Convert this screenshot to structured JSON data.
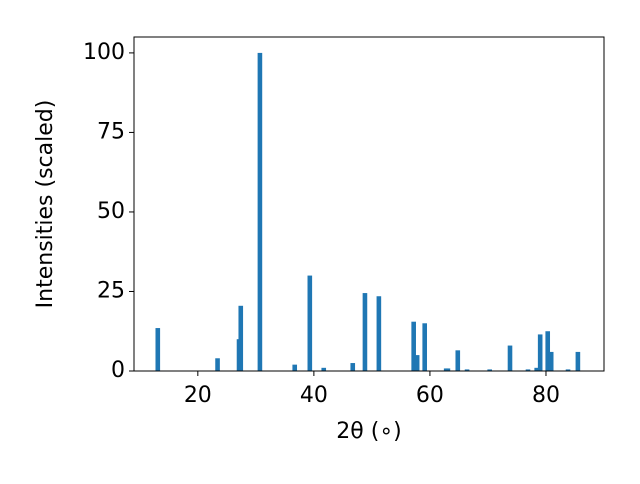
{
  "chart_data": {
    "type": "bar",
    "x_label": "2θ (∘)",
    "y_label": "Intensities (scaled)",
    "x": [
      13.1,
      23.4,
      27.1,
      27.4,
      30.7,
      36.7,
      39.3,
      41.7,
      46.7,
      48.8,
      51.2,
      57.2,
      57.8,
      59.1,
      62.8,
      63.1,
      64.8,
      66.4,
      70.3,
      73.8,
      76.9,
      78.4,
      79.0,
      80.3,
      80.9,
      83.8,
      85.5
    ],
    "values": [
      13.5,
      4,
      10,
      20.5,
      100,
      2,
      30,
      1,
      2.5,
      24.5,
      23.5,
      15.5,
      5,
      15,
      0.8,
      0.8,
      6.5,
      0.5,
      0.5,
      8,
      0.5,
      1,
      11.5,
      12.5,
      6,
      0.5,
      6
    ],
    "color": "#1f77b4",
    "xlim": [
      9,
      90
    ],
    "xticks": [
      20,
      40,
      60,
      80
    ],
    "ylim": [
      0,
      105
    ],
    "yticks": [
      0,
      25,
      50,
      75,
      100
    ],
    "grid": false
  }
}
